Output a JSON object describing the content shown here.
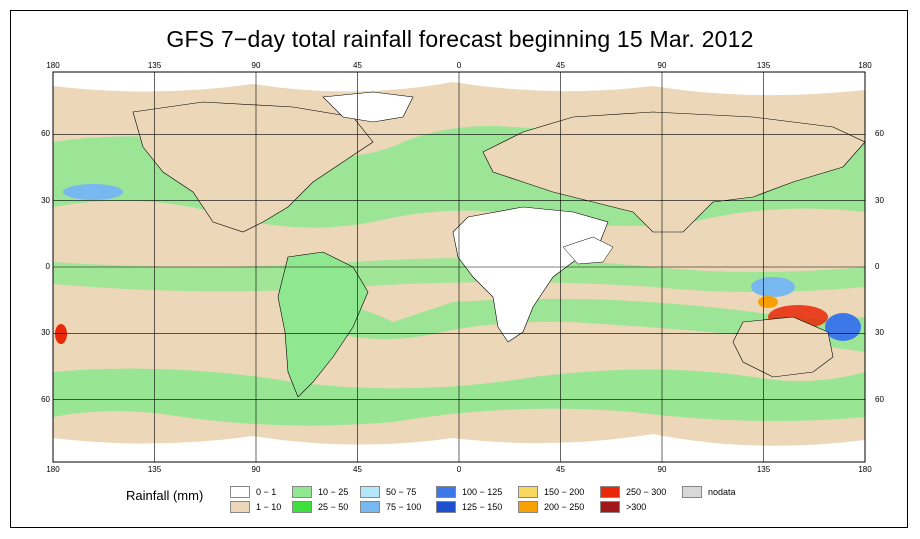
{
  "title": "GFS 7−day total rainfall forecast beginning 15 Mar. 2012",
  "map": {
    "lon_ticks": [
      "180",
      "135",
      "90",
      "45",
      "0",
      "45",
      "90",
      "135",
      "180"
    ],
    "lat_ticks": [
      "60",
      "30",
      "0",
      "30",
      "60"
    ],
    "colors": {
      "ocean_base": "#d4eaa0",
      "land_dry": "#ffffff",
      "light_rain": "#ecd7b8",
      "moderate": "#8fe88f",
      "heavy": "#5c9ee8",
      "very_heavy": "#e8a030",
      "extreme": "#c02020",
      "coast": "#000000",
      "grid": "#000000"
    }
  },
  "legend": {
    "title": "Rainfall (mm)",
    "items": [
      {
        "label": "0 − 1",
        "color": "#ffffff"
      },
      {
        "label": "1 − 10",
        "color": "#ecd7b8"
      },
      {
        "label": "10 − 25",
        "color": "#8fe88f"
      },
      {
        "label": "25 − 50",
        "color": "#3ee03e"
      },
      {
        "label": "50 − 75",
        "color": "#b4e8f8"
      },
      {
        "label": "75 − 100",
        "color": "#78b8f0"
      },
      {
        "label": "100 − 125",
        "color": "#3c78e8"
      },
      {
        "label": "125 − 150",
        "color": "#1c50d0"
      },
      {
        "label": "150 − 200",
        "color": "#f8d860"
      },
      {
        "label": "200 − 250",
        "color": "#f8a000"
      },
      {
        "label": "250 − 300",
        "color": "#e82808"
      },
      {
        "label": ">300",
        "color": "#a01818"
      },
      {
        "label": "nodata",
        "color": "#d8d8d8"
      }
    ]
  }
}
